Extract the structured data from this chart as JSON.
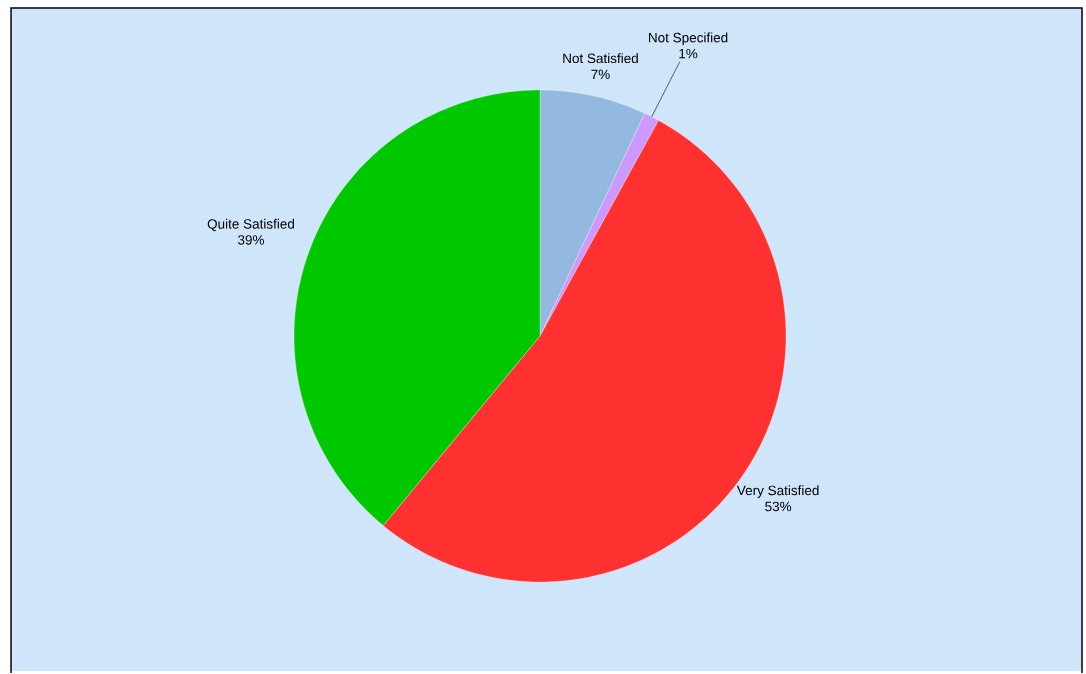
{
  "chart_data": {
    "type": "pie",
    "categories": [
      "Not Satisfied",
      "Not Specified",
      "Very Satisfied",
      "Quite Satisfied"
    ],
    "values": [
      7,
      1,
      53,
      39
    ],
    "colors": [
      "#93b9e0",
      "#cc99ff",
      "#ff3030",
      "#00c800"
    ],
    "value_labels": [
      "7%",
      "1%",
      "53%",
      "39%"
    ]
  }
}
